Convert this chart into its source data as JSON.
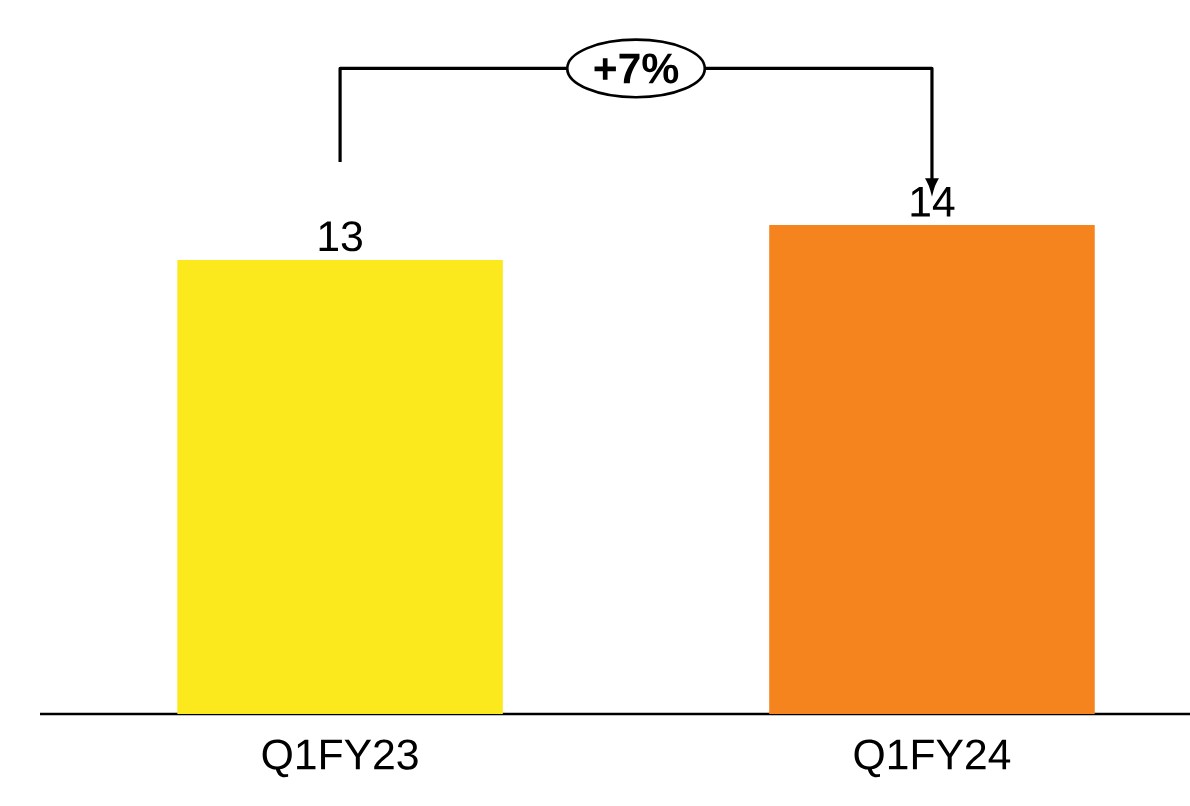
{
  "chart_data": {
    "type": "bar",
    "categories": [
      "Q1FY23",
      "Q1FY24"
    ],
    "values": [
      13,
      14
    ],
    "colors": [
      "#fbe91e",
      "#f5841f"
    ],
    "data_labels": true,
    "annotations": [
      "+7%"
    ]
  }
}
